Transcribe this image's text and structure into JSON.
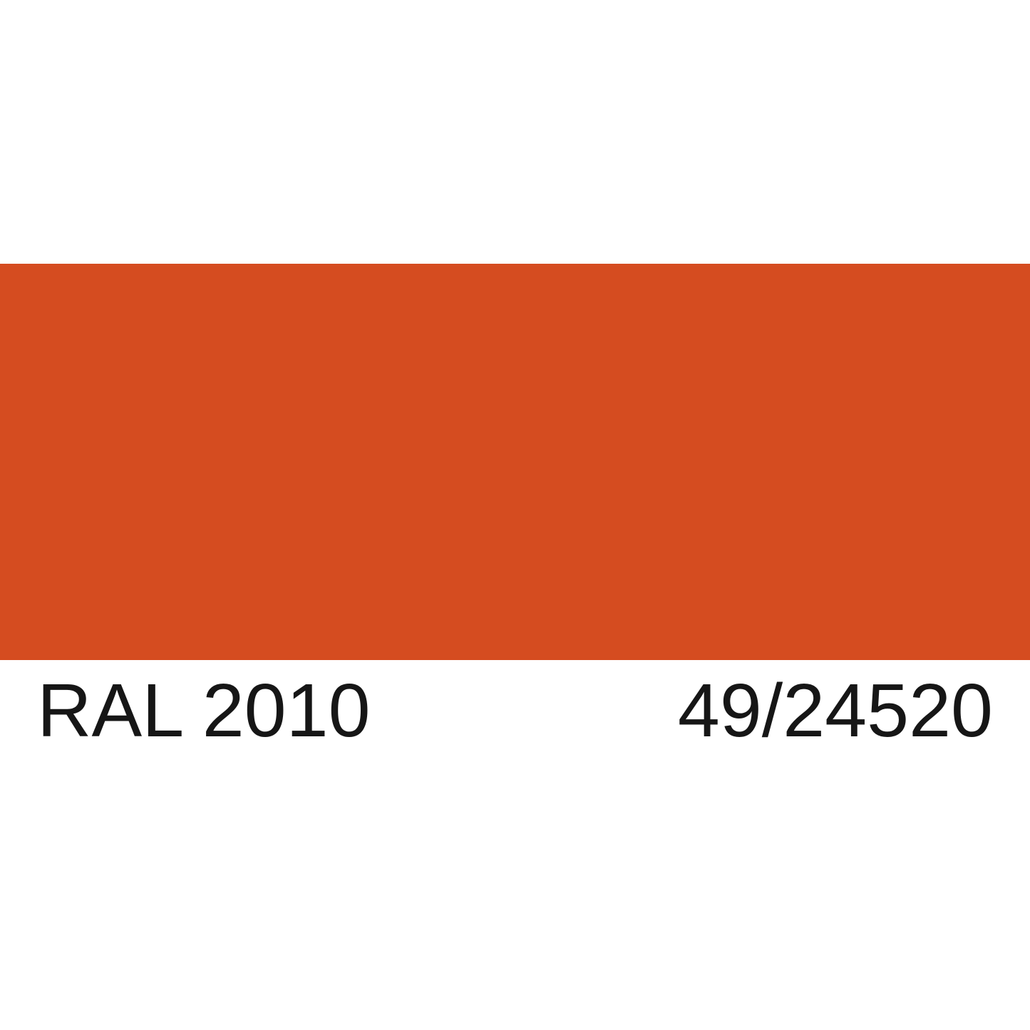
{
  "swatch": {
    "ral_code": "RAL 2010",
    "reference_code": "49/24520",
    "color_hex": "#d54c20",
    "color_semantic": "signal-orange"
  },
  "colors": {
    "background": "#ffffff",
    "text": "#161616"
  }
}
